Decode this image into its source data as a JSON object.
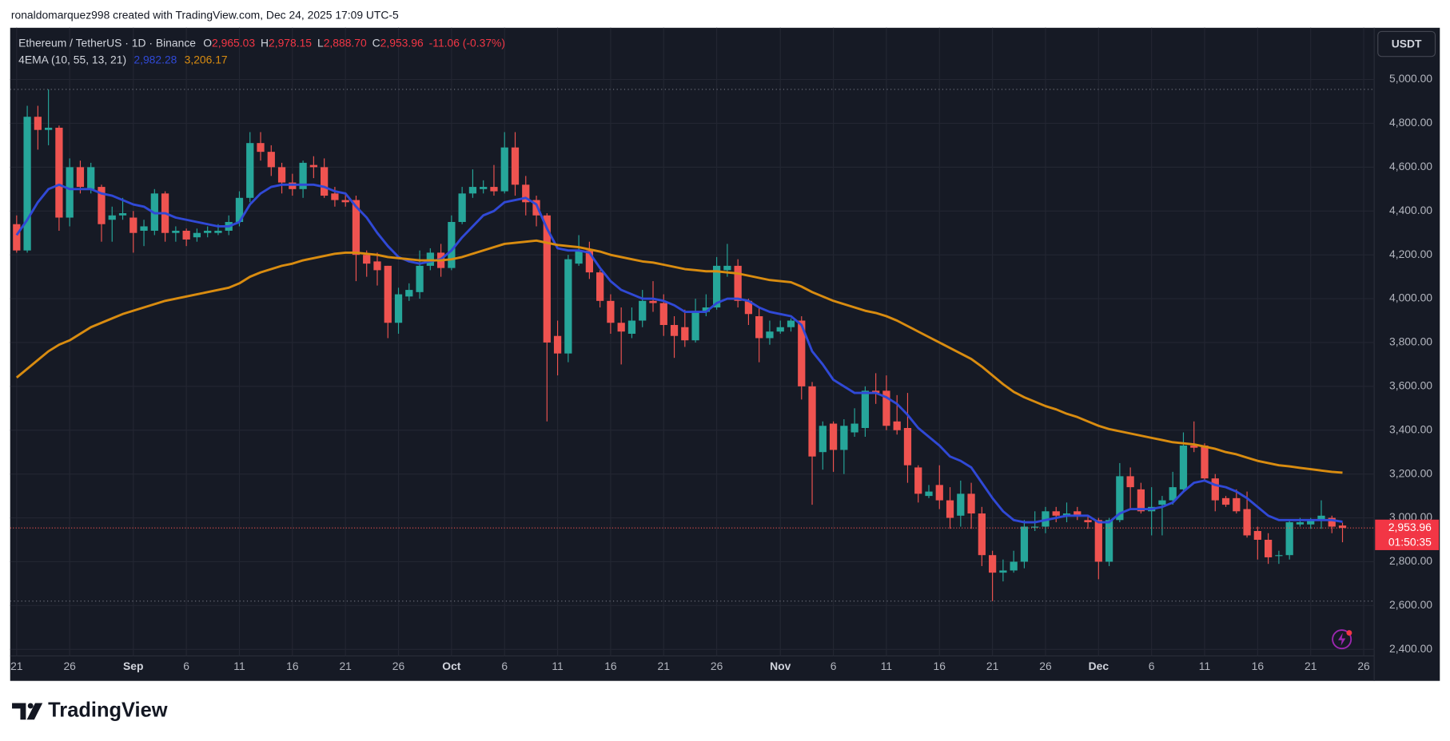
{
  "header": {
    "watermark": "ronaldomarquez998 created with TradingView.com, Dec 24, 2025 17:09 UTC-5",
    "brand": "TradingView"
  },
  "chart_data": {
    "type": "candlestick",
    "title": "Ethereum / TetherUS · 1D · Binance",
    "ohlc_legend": [
      {
        "key": "O",
        "value": "2,965.03"
      },
      {
        "key": "H",
        "value": "2,978.15"
      },
      {
        "key": "L",
        "value": "2,888.70"
      },
      {
        "key": "C",
        "value": "2,953.96"
      }
    ],
    "change": "-11.06 (-0.37%)",
    "categories": [
      "21",
      null,
      null,
      null,
      null,
      "26",
      null,
      null,
      null,
      null,
      null,
      "Sep",
      null,
      null,
      null,
      null,
      "6",
      null,
      null,
      null,
      null,
      "11",
      null,
      null,
      null,
      null,
      "16",
      null,
      null,
      null,
      null,
      "21",
      null,
      null,
      null,
      null,
      "26",
      null,
      null,
      null,
      null,
      "Oct",
      null,
      null,
      null,
      null,
      "6",
      null,
      null,
      null,
      null,
      "11",
      null,
      null,
      null,
      null,
      "16",
      null,
      null,
      null,
      null,
      "21",
      null,
      null,
      null,
      null,
      "26",
      null,
      null,
      null,
      null,
      null,
      "Nov",
      null,
      null,
      null,
      null,
      "6",
      null,
      null,
      null,
      null,
      "11",
      null,
      null,
      null,
      null,
      "16",
      null,
      null,
      null,
      null,
      "21",
      null,
      null,
      null,
      null,
      "26",
      null,
      null,
      null,
      null,
      "Dec",
      null,
      null,
      null,
      null,
      "6",
      null,
      null,
      null,
      null,
      "11",
      null,
      null,
      null,
      null,
      "16",
      null,
      null,
      null,
      null,
      "21",
      null,
      null,
      null,
      null,
      "26"
    ],
    "open": [
      4340,
      4220,
      4830,
      4770,
      4780,
      4370,
      4600,
      4500,
      4510,
      4360,
      4380,
      4370,
      4310,
      4310,
      4480,
      4300,
      4310,
      4280,
      4300,
      4300,
      4310,
      4350,
      4460,
      4710,
      4670,
      4600,
      4530,
      4500,
      4610,
      4600,
      4480,
      4450,
      4450,
      4200,
      4170,
      4150,
      3890,
      4010,
      4030,
      4150,
      4210,
      4140,
      4350,
      4480,
      4500,
      4510,
      4490,
      4690,
      4520,
      4450,
      4380,
      3830,
      3750,
      4160,
      4220,
      4120,
      3990,
      3890,
      3840,
      3900,
      3990,
      3980,
      3880,
      3870,
      3810,
      3940,
      3960,
      4130,
      4150,
      3990,
      3920,
      3820,
      3850,
      3870,
      3900,
      3600,
      3300,
      3430,
      3310,
      3390,
      3410,
      3580,
      3580,
      3440,
      3410,
      3230,
      3100,
      3150,
      3080,
      3010,
      3110,
      3020,
      2830,
      2750,
      2760,
      2800,
      2960,
      2960,
      3030,
      3010,
      3030,
      2990,
      2990,
      2800,
      2990,
      3190,
      3130,
      3030,
      3060,
      3080,
      3130,
      3330,
      3330,
      3180,
      3090,
      3090,
      3040,
      2940,
      2900,
      2830,
      2830,
      2970,
      2970,
      2990,
      3000,
      2965.03,
      null,
      null
    ],
    "high": [
      4380,
      4880,
      4880,
      4955,
      4790,
      4640,
      4630,
      4620,
      4520,
      4420,
      4460,
      4400,
      4360,
      4500,
      4490,
      4330,
      4320,
      4320,
      4330,
      4340,
      4380,
      4490,
      4760,
      4760,
      4700,
      4620,
      4570,
      4630,
      4650,
      4640,
      4510,
      4480,
      4470,
      4220,
      4210,
      4150,
      4050,
      4070,
      4220,
      4230,
      4250,
      4380,
      4510,
      4590,
      4540,
      4610,
      4760,
      4760,
      4560,
      4470,
      4390,
      3900,
      4200,
      4290,
      4260,
      4130,
      4020,
      3960,
      3960,
      4040,
      4080,
      4020,
      3920,
      3950,
      4000,
      4020,
      4190,
      4250,
      4180,
      4000,
      3960,
      3900,
      3900,
      3910,
      3920,
      3620,
      3440,
      3440,
      3450,
      3500,
      3600,
      3660,
      3650,
      3560,
      3570,
      3240,
      3150,
      3240,
      3140,
      3170,
      3160,
      3050,
      2850,
      2810,
      2850,
      2990,
      3030,
      3050,
      3050,
      3070,
      3050,
      3010,
      3000,
      3000,
      3250,
      3230,
      3160,
      3140,
      3100,
      3210,
      3390,
      3440,
      3340,
      3200,
      3100,
      3130,
      3120,
      2960,
      2930,
      2850,
      2990,
      3000,
      3000,
      3080,
      3010,
      2978.15,
      null,
      null
    ],
    "low": [
      4210,
      4210,
      4680,
      4700,
      4310,
      4330,
      4480,
      4480,
      4260,
      4260,
      4360,
      4210,
      4240,
      4290,
      4260,
      4260,
      4240,
      4260,
      4280,
      4290,
      4290,
      4330,
      4440,
      4630,
      4560,
      4480,
      4470,
      4460,
      4550,
      4460,
      4420,
      4420,
      4080,
      4100,
      4060,
      3820,
      3840,
      3990,
      4000,
      4130,
      4100,
      4130,
      4340,
      4460,
      4480,
      4470,
      4480,
      4470,
      4380,
      4330,
      3440,
      3650,
      3710,
      4150,
      4090,
      3960,
      3840,
      3700,
      3820,
      3870,
      3940,
      3830,
      3730,
      3780,
      3800,
      3920,
      3950,
      4100,
      3960,
      3880,
      3710,
      3790,
      3840,
      3850,
      3540,
      3060,
      3220,
      3210,
      3200,
      3370,
      3370,
      3520,
      3400,
      3380,
      3160,
      3070,
      3090,
      3040,
      2950,
      2960,
      2950,
      2780,
      2620,
      2710,
      2750,
      2770,
      2940,
      2930,
      2980,
      2980,
      2990,
      2950,
      2720,
      2780,
      2980,
      3040,
      3020,
      2920,
      2920,
      3060,
      3120,
      3300,
      3170,
      3030,
      3050,
      3020,
      2910,
      2810,
      2790,
      2790,
      2810,
      2960,
      2950,
      2950,
      2930,
      2888.7,
      null,
      null
    ],
    "close": [
      4220,
      4830,
      4770,
      4780,
      4370,
      4600,
      4510,
      4600,
      4340,
      4380,
      4390,
      4300,
      4330,
      4480,
      4300,
      4310,
      4270,
      4300,
      4310,
      4310,
      4350,
      4460,
      4710,
      4670,
      4600,
      4530,
      4500,
      4620,
      4600,
      4470,
      4450,
      4440,
      4200,
      4160,
      4130,
      3890,
      4020,
      4040,
      4150,
      4210,
      4140,
      4350,
      4480,
      4510,
      4510,
      4490,
      4690,
      4520,
      4440,
      4380,
      3800,
      3750,
      4180,
      4220,
      4120,
      3990,
      3890,
      3850,
      3900,
      3990,
      3980,
      3880,
      3830,
      3810,
      3940,
      3960,
      4150,
      4150,
      3990,
      3930,
      3820,
      3850,
      3870,
      3900,
      3600,
      3280,
      3420,
      3310,
      3420,
      3430,
      3580,
      3570,
      3420,
      3400,
      3240,
      3110,
      3120,
      3080,
      3000,
      3110,
      3020,
      2830,
      2750,
      2760,
      2800,
      2960,
      2960,
      3030,
      3010,
      3020,
      3010,
      2980,
      2800,
      2990,
      3190,
      3140,
      3030,
      3050,
      3080,
      3140,
      3330,
      3320,
      3180,
      3080,
      3060,
      3030,
      2920,
      2900,
      2820,
      2830,
      2980,
      2980,
      2990,
      3010,
      2960,
      2953.96,
      null,
      null
    ],
    "up_color": "#26a69a",
    "down_color": "#ef5350",
    "indicator": {
      "label": "4EMA (10, 55, 13, 21)",
      "series": [
        {
          "color": "#3049d6",
          "value_label": "2,982.28",
          "values": [
            4290,
            4360,
            4440,
            4500,
            4520,
            4500,
            4500,
            4500,
            4480,
            4470,
            4450,
            4430,
            4420,
            4390,
            4390,
            4370,
            4360,
            4350,
            4340,
            4330,
            4330,
            4350,
            4430,
            4480,
            4510,
            4520,
            4520,
            4520,
            4520,
            4510,
            4490,
            4480,
            4420,
            4370,
            4300,
            4240,
            4190,
            4170,
            4160,
            4170,
            4180,
            4220,
            4280,
            4330,
            4380,
            4400,
            4440,
            4450,
            4460,
            4430,
            4320,
            4230,
            4220,
            4220,
            4210,
            4140,
            4080,
            4040,
            4020,
            4000,
            4000,
            3990,
            3970,
            3940,
            3940,
            3940,
            3980,
            4000,
            4000,
            3990,
            3960,
            3940,
            3930,
            3920,
            3880,
            3760,
            3700,
            3630,
            3600,
            3570,
            3570,
            3570,
            3550,
            3520,
            3470,
            3410,
            3370,
            3330,
            3280,
            3260,
            3230,
            3160,
            3090,
            3030,
            2990,
            2980,
            2980,
            2990,
            3000,
            3010,
            3010,
            3010,
            2980,
            2980,
            3020,
            3040,
            3040,
            3040,
            3050,
            3070,
            3120,
            3160,
            3170,
            3150,
            3140,
            3120,
            3090,
            3050,
            3010,
            2990,
            2990,
            2990,
            2990,
            2990,
            2990,
            2982.28,
            null,
            null
          ]
        },
        {
          "color": "#d98c10",
          "value_label": "3,206.17",
          "values": [
            3640,
            3680,
            3720,
            3760,
            3790,
            3810,
            3840,
            3870,
            3890,
            3910,
            3930,
            3945,
            3960,
            3975,
            3990,
            4000,
            4010,
            4020,
            4030,
            4040,
            4050,
            4070,
            4100,
            4120,
            4135,
            4150,
            4160,
            4175,
            4185,
            4195,
            4205,
            4210,
            4210,
            4205,
            4200,
            4190,
            4185,
            4180,
            4175,
            4175,
            4175,
            4180,
            4190,
            4205,
            4220,
            4235,
            4250,
            4255,
            4260,
            4265,
            4255,
            4245,
            4240,
            4235,
            4225,
            4215,
            4200,
            4190,
            4180,
            4170,
            4165,
            4155,
            4145,
            4135,
            4130,
            4125,
            4125,
            4120,
            4115,
            4105,
            4095,
            4085,
            4080,
            4075,
            4055,
            4030,
            4010,
            3990,
            3975,
            3960,
            3945,
            3935,
            3920,
            3900,
            3875,
            3850,
            3825,
            3800,
            3775,
            3750,
            3725,
            3690,
            3650,
            3610,
            3575,
            3550,
            3530,
            3510,
            3495,
            3475,
            3460,
            3440,
            3420,
            3405,
            3395,
            3385,
            3375,
            3365,
            3355,
            3345,
            3340,
            3335,
            3325,
            3315,
            3300,
            3290,
            3275,
            3260,
            3250,
            3240,
            3235,
            3228,
            3222,
            3216,
            3210,
            3206.17,
            null,
            null
          ]
        }
      ]
    },
    "ylim": [
      2370,
      5236
    ],
    "yticks": [
      {
        "value": 2400,
        "label": "2,400.00"
      },
      {
        "value": 2600,
        "label": "2,600.00"
      },
      {
        "value": 2800,
        "label": "2,800.00"
      },
      {
        "value": 3000,
        "label": "3,000.00"
      },
      {
        "value": 3200,
        "label": "3,200.00"
      },
      {
        "value": 3400,
        "label": "3,400.00"
      },
      {
        "value": 3600,
        "label": "3,600.00"
      },
      {
        "value": 3800,
        "label": "3,800.00"
      },
      {
        "value": 4000,
        "label": "4,000.00"
      },
      {
        "value": 4200,
        "label": "4,200.00"
      },
      {
        "value": 4400,
        "label": "4,400.00"
      },
      {
        "value": 4600,
        "label": "4,600.00"
      },
      {
        "value": 4800,
        "label": "4,800.00"
      },
      {
        "value": 5000,
        "label": "5,000.00"
      }
    ],
    "grid": true,
    "currency": "USDT",
    "last_price_label": "2,953.96",
    "countdown": "01:50:35"
  }
}
